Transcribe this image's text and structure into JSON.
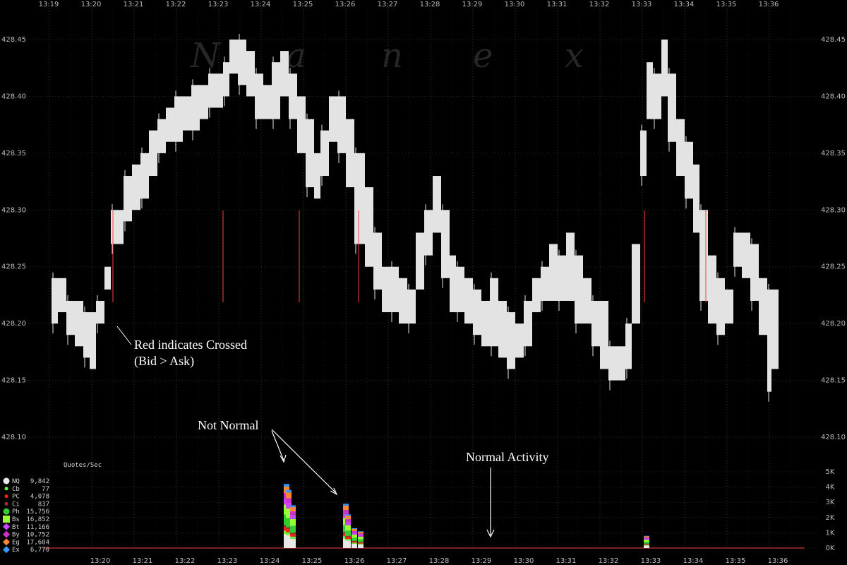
{
  "chart_data": [
    {
      "type": "area",
      "watermark": [
        "N",
        "a",
        "n",
        "e",
        "x"
      ],
      "x_ticks": [
        "13:19",
        "13:20",
        "13:21",
        "13:22",
        "13:23",
        "13:24",
        "13:25",
        "13:26",
        "13:27",
        "13:28",
        "13:29",
        "13:30",
        "13:31",
        "13:32",
        "13:33",
        "13:34",
        "13:35",
        "13:36"
      ],
      "y_ticks": [
        "428.10",
        "428.15",
        "428.20",
        "428.25",
        "428.30",
        "428.35",
        "428.40",
        "428.45"
      ],
      "ylim": [
        428.1,
        428.45
      ],
      "series": [
        {
          "name": "Bid/Ask spread",
          "x": [
            19.05,
            19.2,
            19.4,
            19.6,
            19.8,
            19.95,
            20.1,
            20.3,
            20.45,
            20.6,
            20.75,
            20.95,
            21.15,
            21.35,
            21.55,
            21.75,
            21.95,
            22.15,
            22.35,
            22.55,
            22.75,
            22.95,
            23.1,
            23.25,
            23.45,
            23.65,
            23.85,
            24.05,
            24.25,
            24.45,
            24.65,
            24.85,
            25.05,
            25.25,
            25.4,
            25.6,
            25.8,
            26.0,
            26.2,
            26.45,
            26.65,
            26.85,
            27.05,
            27.25,
            27.45,
            27.65,
            27.85,
            28.05,
            28.25,
            28.45,
            28.6,
            28.8,
            29.0,
            29.2,
            29.4,
            29.6,
            29.8,
            30.0,
            30.2,
            30.4,
            30.6,
            30.8,
            31.0,
            31.2,
            31.4,
            31.6,
            31.8,
            32.0,
            32.2,
            32.4,
            32.6,
            32.75,
            32.95,
            33.1,
            33.25,
            33.45,
            33.6,
            33.8,
            34.0,
            34.2,
            34.35,
            34.55,
            34.75,
            34.95,
            35.15,
            35.35,
            35.55,
            35.75,
            35.95,
            36.05
          ],
          "ask": [
            428.24,
            428.24,
            428.22,
            428.22,
            428.21,
            428.21,
            428.22,
            428.25,
            428.3,
            428.3,
            428.33,
            428.34,
            428.35,
            428.37,
            428.38,
            428.39,
            428.4,
            428.4,
            428.41,
            428.41,
            428.42,
            428.42,
            428.43,
            428.45,
            428.45,
            428.44,
            428.42,
            428.41,
            428.43,
            428.44,
            428.42,
            428.4,
            428.38,
            428.35,
            428.37,
            428.4,
            428.4,
            428.38,
            428.35,
            428.32,
            428.28,
            428.25,
            428.25,
            428.24,
            428.23,
            428.28,
            428.3,
            428.33,
            428.3,
            428.26,
            428.25,
            428.24,
            428.23,
            428.22,
            428.24,
            428.22,
            428.21,
            428.2,
            428.22,
            428.24,
            428.25,
            428.27,
            428.26,
            428.28,
            428.26,
            428.24,
            428.22,
            428.22,
            428.18,
            428.18,
            428.2,
            428.27,
            428.37,
            428.43,
            428.42,
            428.45,
            428.42,
            428.38,
            428.36,
            428.34,
            428.3,
            428.26,
            428.24,
            428.23,
            428.28,
            428.28,
            428.27,
            428.24,
            428.23,
            428.23
          ],
          "bid": [
            428.2,
            428.21,
            428.19,
            428.18,
            428.17,
            428.16,
            428.2,
            428.23,
            428.27,
            428.27,
            428.29,
            428.3,
            428.31,
            428.33,
            428.35,
            428.36,
            428.36,
            428.37,
            428.37,
            428.38,
            428.39,
            428.39,
            428.4,
            428.42,
            428.41,
            428.4,
            428.38,
            428.38,
            428.38,
            428.4,
            428.38,
            428.35,
            428.32,
            428.31,
            428.33,
            428.36,
            428.35,
            428.32,
            428.27,
            428.25,
            428.23,
            428.21,
            428.21,
            428.2,
            428.2,
            428.23,
            428.26,
            428.28,
            428.24,
            428.21,
            428.21,
            428.2,
            428.19,
            428.18,
            428.18,
            428.17,
            428.16,
            428.17,
            428.18,
            428.21,
            428.22,
            428.22,
            428.22,
            428.22,
            428.2,
            428.2,
            428.18,
            428.16,
            428.15,
            428.15,
            428.16,
            428.2,
            428.33,
            428.38,
            428.38,
            428.4,
            428.36,
            428.33,
            428.31,
            428.28,
            428.22,
            428.2,
            428.19,
            428.2,
            428.25,
            428.24,
            428.22,
            428.19,
            428.14,
            428.16
          ]
        }
      ]
    },
    {
      "type": "area",
      "title": "Quotes/Sec",
      "y_ticks": [
        "0K",
        "1K",
        "2K",
        "3K",
        "4K",
        "5K"
      ],
      "ylim": [
        0,
        5000
      ],
      "series": [
        {
          "key": "NQ",
          "value": "9,842",
          "color": "#e8e8e8",
          "shape": "circle"
        },
        {
          "key": "Cb",
          "value": "77",
          "color": "#66ff33",
          "shape": "circle-small"
        },
        {
          "key": "PC",
          "value": "4,078",
          "color": "#ff2020",
          "shape": "circle-small"
        },
        {
          "key": "Ci",
          "value": "837",
          "color": "#993333",
          "shape": "circle-small"
        },
        {
          "key": "Ph",
          "value": "15,756",
          "color": "#33cc33",
          "shape": "circle"
        },
        {
          "key": "Bs",
          "value": "16,852",
          "color": "#99ff33",
          "shape": "square"
        },
        {
          "key": "Bt",
          "value": "11,166",
          "color": "#cc44ff",
          "shape": "diamond"
        },
        {
          "key": "By",
          "value": "10,752",
          "color": "#cc33cc",
          "shape": "diamond"
        },
        {
          "key": "Eg",
          "value": "17,604",
          "color": "#ff8833",
          "shape": "diamond"
        },
        {
          "key": "Ex",
          "value": "6,770",
          "color": "#3399ff",
          "shape": "diamond"
        }
      ],
      "spikes": [
        {
          "minute": 24.6,
          "total": 4200
        },
        {
          "minute": 24.65,
          "total": 3800
        },
        {
          "minute": 24.75,
          "total": 2800
        },
        {
          "minute": 26.0,
          "total": 2900
        },
        {
          "minute": 26.05,
          "total": 2200
        },
        {
          "minute": 26.2,
          "total": 1300
        },
        {
          "minute": 26.35,
          "total": 1100
        },
        {
          "minute": 33.1,
          "total": 800
        }
      ]
    }
  ],
  "annotations": {
    "crossed_line1": "Red indicates Crossed",
    "crossed_line2": "(Bid > Ask)",
    "not_normal": "Not Normal",
    "normal_activity": "Normal Activity"
  }
}
